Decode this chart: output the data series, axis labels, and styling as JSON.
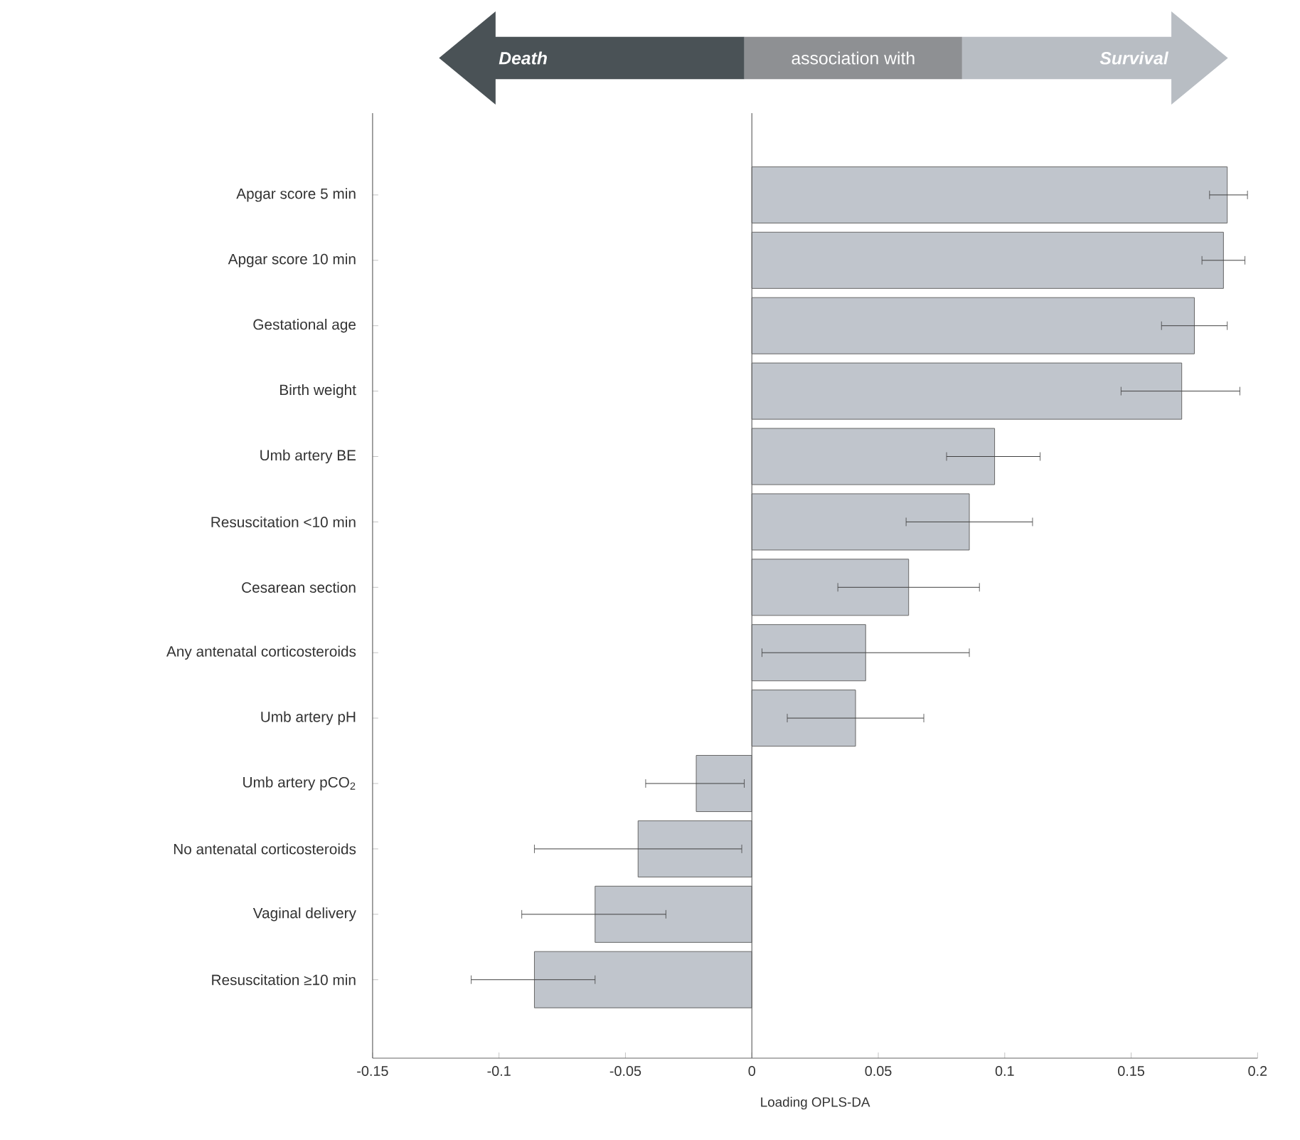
{
  "chart_data": {
    "type": "bar",
    "orientation": "horizontal",
    "xlabel": "Loading OPLS-DA",
    "categories": [
      "Apgar score 5 min",
      "Apgar score 10 min",
      "Gestational age",
      "Birth weight",
      "Umb artery BE",
      "Resuscitation <10 min",
      "Cesarean section",
      "Any antenatal corticosteroids",
      "Umb artery pH",
      "Umb artery pCO$_{2}$",
      "No antenatal corticosteroids",
      "Vaginal delivery",
      "Resuscitation ≥10 min"
    ],
    "values": [
      0.188,
      0.1865,
      0.175,
      0.17,
      0.096,
      0.086,
      0.062,
      0.045,
      0.041,
      -0.022,
      -0.045,
      -0.062,
      -0.086
    ],
    "errors": [
      [
        0.181,
        0.196
      ],
      [
        0.178,
        0.195
      ],
      [
        0.162,
        0.188
      ],
      [
        0.146,
        0.193
      ],
      [
        0.077,
        0.114
      ],
      [
        0.061,
        0.111
      ],
      [
        0.034,
        0.09
      ],
      [
        0.004,
        0.086
      ],
      [
        0.014,
        0.068
      ],
      [
        -0.042,
        -0.003
      ],
      [
        -0.086,
        -0.004
      ],
      [
        -0.091,
        -0.034
      ],
      [
        -0.111,
        -0.062
      ]
    ],
    "color": "#c0c5cc",
    "xlim": [
      -0.15,
      0.2
    ],
    "xticks": [
      -0.15,
      -0.1,
      -0.05,
      0,
      0.05,
      0.1,
      0.15,
      0.2
    ],
    "ref_lines": [
      {
        "axis": "x",
        "value": 0,
        "color": "#666666"
      }
    ],
    "annotations": [
      "Death",
      "association with",
      "Survival"
    ]
  }
}
